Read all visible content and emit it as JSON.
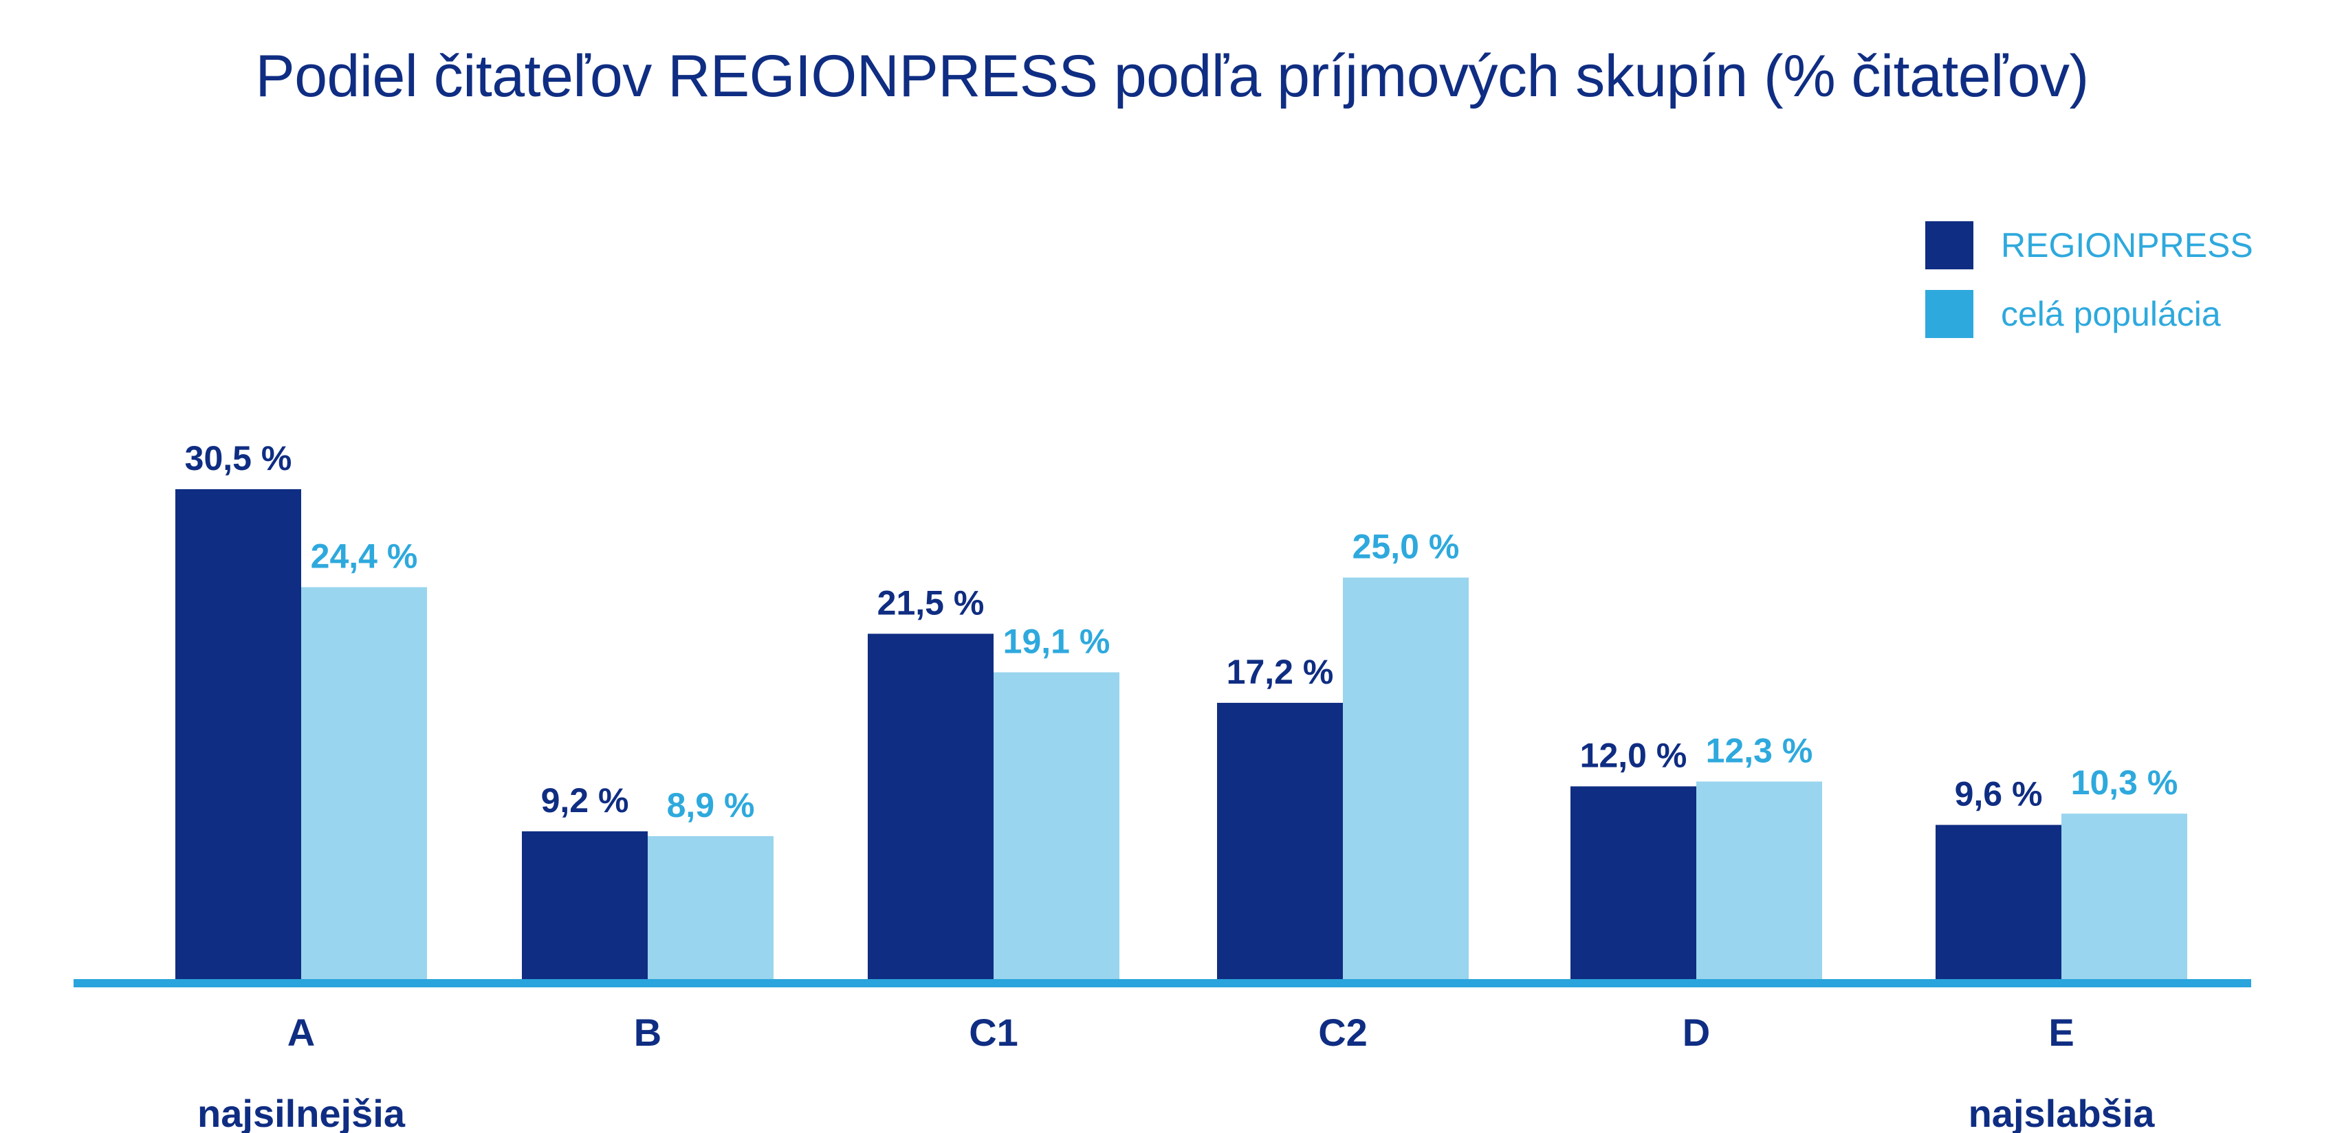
{
  "chart_data": {
    "type": "bar",
    "title": "Podiel čitateľov REGIONPRESS podľa príjmových skupín (% čitateľov)",
    "categories": [
      "A",
      "B",
      "C1",
      "C2",
      "D",
      "E"
    ],
    "category_notes": [
      "najsilnejšia",
      "",
      "",
      "",
      "",
      "najslabšia"
    ],
    "series": [
      {
        "name": "REGIONPRESS",
        "values": [
          30.5,
          9.2,
          21.5,
          17.2,
          12.0,
          9.6
        ],
        "labels": [
          "30,5 %",
          "9,2 %",
          "21,5 %",
          "17,2 %",
          "12,0 %",
          "9,6 %"
        ],
        "color": "#0f2d82",
        "label_color": "#0f2d82"
      },
      {
        "name": "celá populácia",
        "values": [
          24.4,
          8.9,
          19.1,
          25.0,
          12.3,
          10.3
        ],
        "labels": [
          "24,4 %",
          "8,9 %",
          "19,1 %",
          "25,0 %",
          "12,3 %",
          "10,3 %"
        ],
        "color": "#99d5ee",
        "label_color": "#2ea9dd"
      }
    ],
    "legend_colors": [
      "#0f2d82",
      "#2ea9dd"
    ],
    "ylim": [
      0,
      32
    ],
    "grid": false,
    "legend_position": "top-right",
    "axis_color": "#2aa4dc"
  }
}
